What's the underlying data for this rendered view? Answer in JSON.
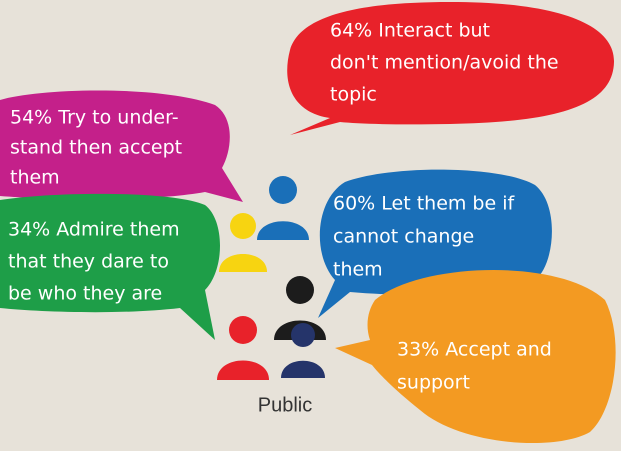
{
  "bubbles": [
    {
      "lines": [
        "64% Interact but",
        "don't mention/avoid the",
        "topic"
      ]
    },
    {
      "lines": [
        "54% Try to under-",
        "stand then accept",
        "them"
      ]
    },
    {
      "lines": [
        "34% Admire them",
        "that they dare to",
        "be who they are"
      ]
    },
    {
      "lines": [
        "60% Let them be if",
        "cannot change",
        "them"
      ]
    },
    {
      "lines": [
        "33% Accept and",
        "support"
      ]
    }
  ],
  "label": "Public"
}
